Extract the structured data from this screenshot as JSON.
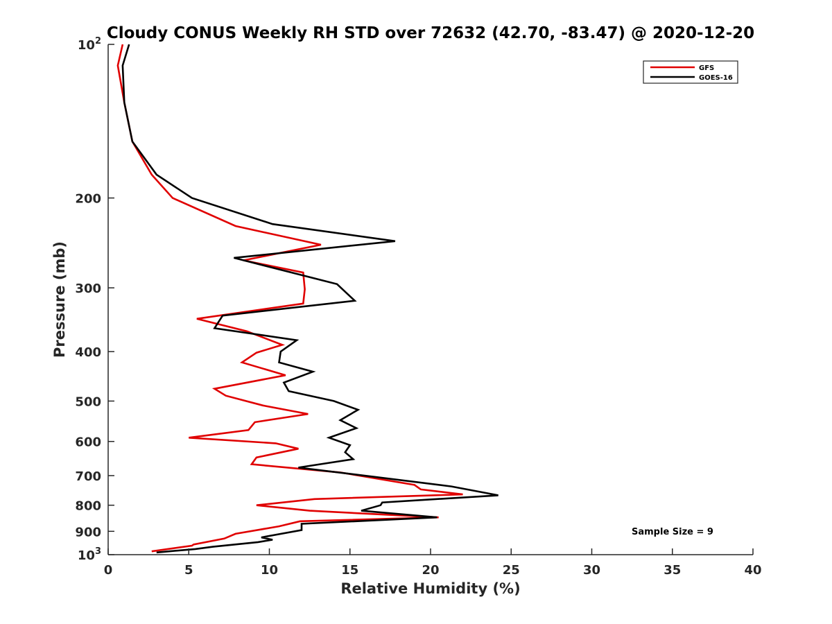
{
  "chart_data": {
    "type": "line",
    "title": "Cloudy CONUS Weekly RH STD over 72632 (42.70, -83.47) @ 2020-12-20",
    "xlabel": "Relative Humidity (%)",
    "ylabel": "Pressure (mb)",
    "xlim": [
      0,
      40
    ],
    "ylim": [
      100,
      1000
    ],
    "y_scale": "log",
    "y_reversed": true,
    "grid": false,
    "legend_position": "top-right",
    "x_ticks": [
      0,
      5,
      10,
      15,
      20,
      25,
      30,
      35,
      40
    ],
    "x_tick_labels": [
      "0",
      "5",
      "10",
      "15",
      "20",
      "25",
      "30",
      "35",
      "40"
    ],
    "y_ticks": [
      100,
      200,
      300,
      400,
      500,
      600,
      700,
      800,
      900,
      1000
    ],
    "y_tick_labels": [
      {
        "text": "10",
        "sup": "2"
      },
      {
        "text": "200",
        "sup": ""
      },
      {
        "text": "300",
        "sup": ""
      },
      {
        "text": "400",
        "sup": ""
      },
      {
        "text": "500",
        "sup": ""
      },
      {
        "text": "600",
        "sup": ""
      },
      {
        "text": "700",
        "sup": ""
      },
      {
        "text": "800",
        "sup": ""
      },
      {
        "text": "900",
        "sup": ""
      },
      {
        "text": "10",
        "sup": "3"
      }
    ],
    "annotation": "Sample Size = 9",
    "series": [
      {
        "name": "GFS",
        "color": "#e00000",
        "x": [
          0.9,
          0.6,
          1.0,
          1.5,
          2.7,
          4.0,
          7.9,
          13.2,
          8.4,
          12.1,
          12.2,
          12.1,
          5.5,
          8.6,
          10.8,
          9.2,
          8.3,
          11.0,
          6.6,
          7.3,
          9.6,
          12.4,
          9.1,
          8.7,
          5.0,
          10.4,
          11.8,
          9.2,
          8.9,
          14.4,
          19.0,
          19.4,
          22.0,
          12.8,
          9.2,
          12.5,
          20.5,
          11.9,
          10.6,
          7.9,
          7.2,
          5.3,
          5.2,
          2.7
        ],
        "y": [
          100,
          110,
          130,
          155,
          180,
          200,
          227,
          247,
          265,
          280,
          302,
          322,
          345,
          365,
          388,
          402,
          420,
          445,
          473,
          488,
          510,
          530,
          550,
          570,
          590,
          605,
          620,
          645,
          665,
          690,
          730,
          745,
          762,
          778,
          800,
          820,
          845,
          860,
          880,
          910,
          930,
          955,
          960,
          985
        ]
      },
      {
        "name": "GOES-16",
        "color": "#000000",
        "x": [
          1.3,
          0.9,
          1.0,
          1.5,
          3.0,
          5.2,
          10.2,
          17.8,
          7.8,
          14.2,
          15.3,
          7.1,
          6.6,
          11.7,
          10.7,
          10.6,
          12.7,
          10.9,
          11.2,
          14.0,
          15.5,
          14.4,
          15.4,
          13.7,
          15.0,
          14.7,
          15.2,
          11.8,
          16.7,
          21.3,
          24.2,
          17.0,
          16.9,
          15.7,
          20.4,
          12.0,
          12.0,
          9.5,
          10.2,
          9.3,
          6.5,
          5.4,
          3.0
        ],
        "y": [
          100,
          110,
          130,
          155,
          180,
          200,
          225,
          243,
          262,
          295,
          318,
          340,
          360,
          380,
          400,
          420,
          438,
          460,
          478,
          500,
          520,
          545,
          565,
          590,
          610,
          630,
          650,
          675,
          705,
          735,
          765,
          790,
          800,
          820,
          845,
          870,
          895,
          925,
          935,
          945,
          965,
          975,
          990
        ]
      }
    ]
  }
}
